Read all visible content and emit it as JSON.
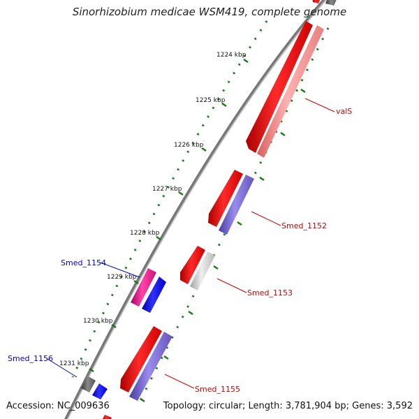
{
  "title": "Sinorhizobium medicae WSM419, complete genome",
  "footer": {
    "accession": "Accession: NC_009636",
    "summary": "Topology: circular; Length: 3,781,904 bp; Genes: 3,592"
  },
  "tick_labels": [
    "1224 kbp",
    "1225 kbp",
    "1226 kbp",
    "1227 kbp",
    "1228 kbp",
    "1229 kbp",
    "1230 kbp",
    "1231 kbp"
  ],
  "gene_labels": {
    "valS": "valS",
    "smed_1152": "Smed_1152",
    "smed_1153": "Smed_1153",
    "smed_1154": "Smed_1154",
    "smed_1155": "Smed_1155",
    "smed_1156": "Smed_1156"
  },
  "colors": {
    "forward_label": "#cc0000",
    "reverse_label": "#0000cc",
    "tick": "#1a7a1a",
    "gene_red": "#ee0000",
    "gene_salmon": "#f08080",
    "gene_purple": "#7766cc",
    "gene_blue": "#0000ee",
    "gene_magenta": "#dd1188",
    "gene_gray": "#555555",
    "gene_lightgray": "#c0c0c0",
    "backbone": "#777777"
  }
}
